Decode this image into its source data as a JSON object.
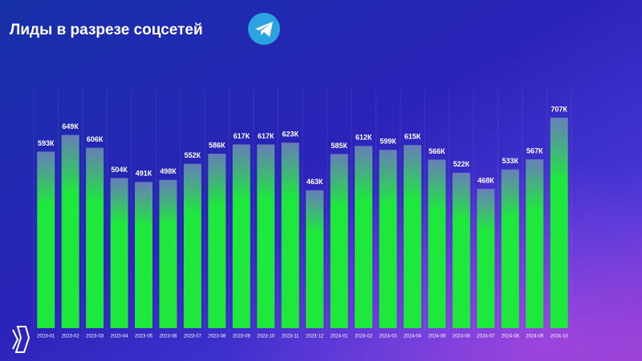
{
  "chart_data": {
    "type": "bar",
    "title": "Лиды в разрезе соцсетей",
    "categories": [
      "2023-01",
      "2023-02",
      "2023-03",
      "2023-04",
      "2023-05",
      "2023-06",
      "2023-07",
      "2023-08",
      "2023-09",
      "2023-10",
      "2023-11",
      "2023-12",
      "2024-01",
      "2024-02",
      "2024-03",
      "2024-04",
      "2024-05",
      "2024-06",
      "2024-07",
      "2024-08",
      "2024-09",
      "2024-10"
    ],
    "values": [
      593,
      649,
      606,
      504,
      491,
      498,
      552,
      586,
      617,
      617,
      623,
      463,
      585,
      612,
      599,
      615,
      566,
      522,
      468,
      533,
      567,
      707
    ],
    "value_labels": [
      "593К",
      "649К",
      "606К",
      "504К",
      "491К",
      "498К",
      "552К",
      "586К",
      "617К",
      "617К",
      "623К",
      "463К",
      "585К",
      "612К",
      "599К",
      "615К",
      "566К",
      "522К",
      "468К",
      "533К",
      "567К",
      "707К"
    ],
    "color": "#1ee83c"
  }
}
